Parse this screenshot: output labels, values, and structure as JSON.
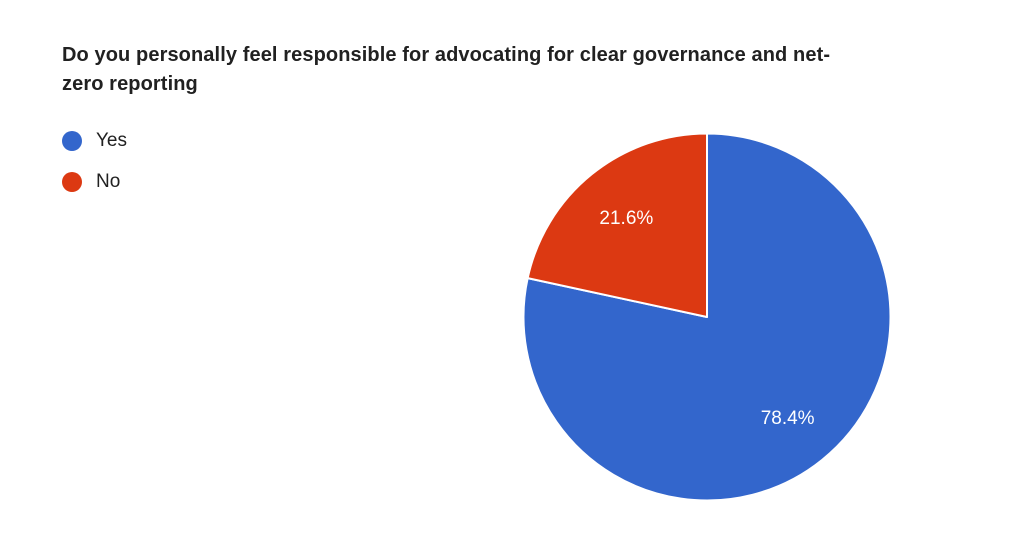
{
  "page": {
    "background_color": "#ffffff"
  },
  "title": {
    "lines": [
      "Do you personally feel responsible for advocating for clear governance and net-",
      "zero reporting"
    ]
  },
  "legend": {
    "items": [
      {
        "label": "Yes",
        "color": "#3366cc"
      },
      {
        "label": "No",
        "color": "#dc3912"
      }
    ]
  },
  "chart_data": {
    "type": "pie",
    "title": "Do you personally feel responsible for advocating for clear governance and net-zero reporting",
    "categories": [
      "Yes",
      "No"
    ],
    "values": [
      78.4,
      21.6
    ],
    "labels": [
      "78.4%",
      "21.6%"
    ],
    "colors": [
      "#3366cc",
      "#dc3912"
    ],
    "unit": "percent",
    "legend_position": "top-left",
    "start_angle": "12-oclock",
    "direction": "clockwise",
    "slice_border_color": "#ffffff",
    "slice_label_color": "#ffffff"
  }
}
